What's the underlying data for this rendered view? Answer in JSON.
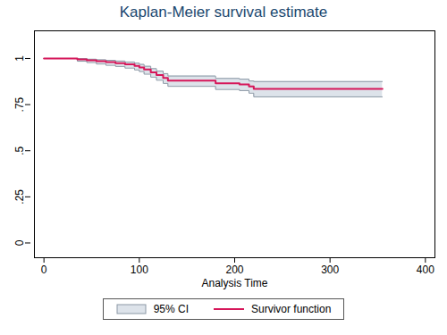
{
  "chart_data": {
    "type": "line",
    "title": "Kaplan-Meier survival estimate",
    "x_label": "Analysis Time",
    "x": [
      0,
      35,
      45,
      55,
      65,
      75,
      85,
      95,
      100,
      105,
      112,
      118,
      125,
      130,
      180,
      205,
      215,
      220,
      355
    ],
    "series": [
      {
        "name": "95% CI",
        "type": "area",
        "color": "#dde3ea",
        "lower": [
          1,
          0.985,
          0.978,
          0.97,
          0.963,
          0.957,
          0.948,
          0.938,
          0.929,
          0.915,
          0.899,
          0.882,
          0.865,
          0.849,
          0.832,
          0.826,
          0.812,
          0.792,
          0.792
        ],
        "upper": [
          1,
          0.999,
          0.996,
          0.993,
          0.99,
          0.986,
          0.981,
          0.975,
          0.968,
          0.958,
          0.945,
          0.932,
          0.918,
          0.905,
          0.892,
          0.888,
          0.878,
          0.875,
          0.875
        ]
      },
      {
        "name": "Survivor function",
        "type": "line",
        "color": "#d6175a",
        "values": [
          1,
          0.995,
          0.99,
          0.985,
          0.98,
          0.975,
          0.968,
          0.96,
          0.952,
          0.94,
          0.925,
          0.91,
          0.895,
          0.88,
          0.865,
          0.86,
          0.848,
          0.835,
          0.835
        ]
      }
    ],
    "xlim": [
      -10,
      410
    ],
    "xticks": [
      0,
      100,
      200,
      300,
      400
    ],
    "ylim": [
      -0.08,
      1.15
    ],
    "yticks": [
      0,
      {
        "value": 0.25,
        "label": ".25"
      },
      {
        "value": 0.5,
        "label": ".5"
      },
      {
        "value": 0.75,
        "label": ".75"
      },
      1
    ],
    "grid": false,
    "legend": "bottom"
  }
}
